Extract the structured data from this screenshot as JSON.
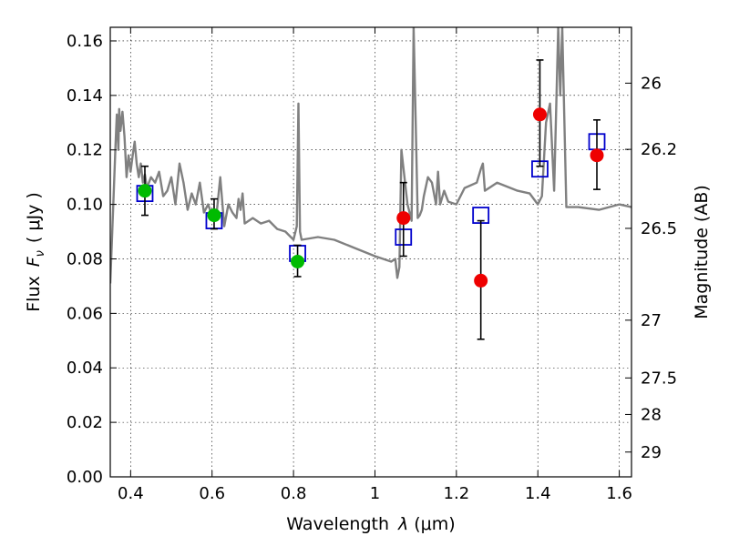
{
  "chart_data": {
    "type": "scatter",
    "title": "",
    "xlabel_text": "Wavelength",
    "xlabel_symbol": "λ",
    "xlabel_unit": "(μm)",
    "ylabel_text": "Flux",
    "ylabel_symbol": "F",
    "ylabel_subscript": "ν",
    "ylabel_unit": "( μJy )",
    "y2label": "Magnitude (AB)",
    "xlim": [
      0.35,
      1.63
    ],
    "ylim": [
      0.0,
      0.165
    ],
    "grid": true,
    "x_ticks": [
      0.4,
      0.6,
      0.8,
      1.0,
      1.2,
      1.4,
      1.6
    ],
    "x_tick_labels": [
      "0.4",
      "0.6",
      "0.8",
      "1",
      "1.2",
      "1.4",
      "1.6"
    ],
    "y_ticks": [
      0.0,
      0.02,
      0.04,
      0.06,
      0.08,
      0.1,
      0.12,
      0.14,
      0.16
    ],
    "y_tick_labels": [
      "0.00",
      "0.02",
      "0.04",
      "0.06",
      "0.08",
      "0.10",
      "0.12",
      "0.14",
      "0.16"
    ],
    "y2_ticks": [
      {
        "label": "26",
        "flux": 0.1445
      },
      {
        "label": "26.2",
        "flux": 0.1202
      },
      {
        "label": "26.5",
        "flux": 0.0912
      },
      {
        "label": "27",
        "flux": 0.0575
      },
      {
        "label": "27.5",
        "flux": 0.0363
      },
      {
        "label": "28",
        "flux": 0.0229
      },
      {
        "label": "29",
        "flux": 0.0091
      }
    ],
    "series": [
      {
        "kind": "line",
        "color": "#808080",
        "x": [
          0.35,
          0.357,
          0.363,
          0.366,
          0.37,
          0.372,
          0.375,
          0.38,
          0.385,
          0.39,
          0.395,
          0.4,
          0.405,
          0.41,
          0.415,
          0.42,
          0.425,
          0.43,
          0.435,
          0.44,
          0.45,
          0.46,
          0.47,
          0.48,
          0.49,
          0.5,
          0.51,
          0.52,
          0.53,
          0.54,
          0.55,
          0.56,
          0.57,
          0.58,
          0.59,
          0.6,
          0.61,
          0.62,
          0.63,
          0.64,
          0.65,
          0.66,
          0.665,
          0.67,
          0.675,
          0.68,
          0.7,
          0.72,
          0.74,
          0.76,
          0.78,
          0.8,
          0.808,
          0.812,
          0.816,
          0.82,
          0.86,
          0.9,
          0.95,
          1.0,
          1.02,
          1.04,
          1.05,
          1.055,
          1.06,
          1.065,
          1.08,
          1.09,
          1.095,
          1.1,
          1.105,
          1.11,
          1.115,
          1.12,
          1.13,
          1.14,
          1.15,
          1.155,
          1.16,
          1.17,
          1.18,
          1.2,
          1.22,
          1.25,
          1.26,
          1.265,
          1.27,
          1.3,
          1.35,
          1.38,
          1.4,
          1.41,
          1.42,
          1.43,
          1.44,
          1.45,
          1.455,
          1.46,
          1.47,
          1.5,
          1.55,
          1.6,
          1.63
        ],
        "y": [
          0.071,
          0.098,
          0.122,
          0.133,
          0.12,
          0.135,
          0.127,
          0.134,
          0.125,
          0.11,
          0.118,
          0.112,
          0.118,
          0.123,
          0.115,
          0.11,
          0.115,
          0.108,
          0.111,
          0.106,
          0.11,
          0.108,
          0.112,
          0.103,
          0.105,
          0.11,
          0.1,
          0.115,
          0.108,
          0.098,
          0.104,
          0.1,
          0.108,
          0.097,
          0.1,
          0.096,
          0.095,
          0.11,
          0.092,
          0.1,
          0.097,
          0.095,
          0.102,
          0.098,
          0.104,
          0.093,
          0.095,
          0.093,
          0.094,
          0.091,
          0.09,
          0.087,
          0.092,
          0.137,
          0.09,
          0.087,
          0.088,
          0.087,
          0.084,
          0.081,
          0.08,
          0.079,
          0.08,
          0.073,
          0.077,
          0.12,
          0.1,
          0.094,
          0.165,
          0.13,
          0.095,
          0.096,
          0.098,
          0.103,
          0.11,
          0.108,
          0.1,
          0.112,
          0.1,
          0.105,
          0.101,
          0.1,
          0.106,
          0.108,
          0.113,
          0.115,
          0.105,
          0.108,
          0.105,
          0.104,
          0.1,
          0.103,
          0.13,
          0.137,
          0.105,
          0.165,
          0.14,
          0.165,
          0.099,
          0.099,
          0.098,
          0.1,
          0.099
        ]
      },
      {
        "kind": "boxes",
        "color": "#0000cc",
        "x": [
          0.435,
          0.605,
          0.81,
          1.07,
          1.26,
          1.405,
          1.545
        ],
        "y": [
          0.104,
          0.094,
          0.082,
          0.088,
          0.096,
          0.113,
          0.123
        ]
      },
      {
        "kind": "errorbar",
        "color": "#000000",
        "x": [
          0.435,
          0.605,
          0.81,
          1.07,
          1.26,
          1.405,
          1.545
        ],
        "y": [
          0.105,
          0.096,
          0.079,
          0.095,
          0.072,
          0.133,
          0.118
        ],
        "err_low": [
          0.096,
          0.091,
          0.0735,
          0.081,
          0.0505,
          0.114,
          0.1055
        ],
        "err_high": [
          0.114,
          0.102,
          0.085,
          0.108,
          0.094,
          0.153,
          0.131
        ]
      },
      {
        "kind": "points",
        "marker_colors": [
          "#00bb00",
          "#00bb00",
          "#00bb00",
          "#ee0000",
          "#ee0000",
          "#ee0000",
          "#ee0000"
        ],
        "x": [
          0.435,
          0.605,
          0.81,
          1.07,
          1.26,
          1.405,
          1.545
        ],
        "y": [
          0.105,
          0.096,
          0.079,
          0.095,
          0.072,
          0.133,
          0.118
        ]
      }
    ]
  }
}
